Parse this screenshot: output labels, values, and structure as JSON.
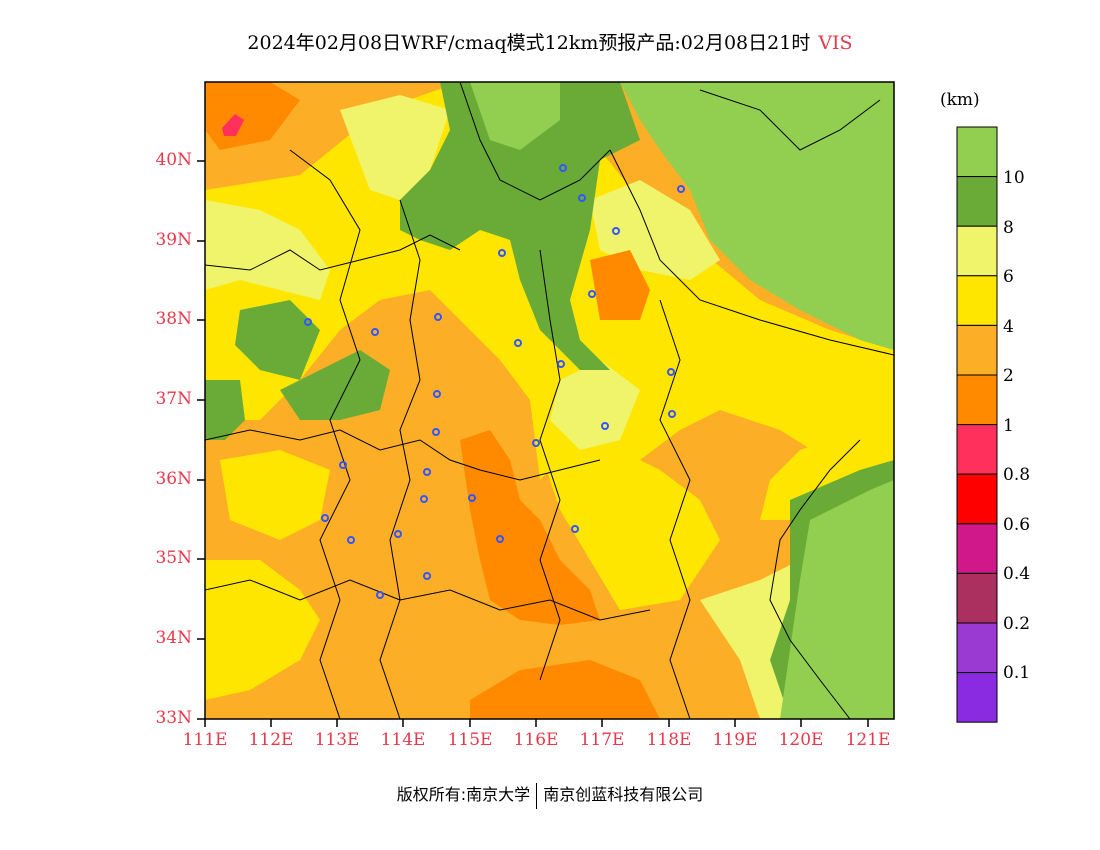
{
  "title": {
    "text": "2024年02月08日WRF/cmaq模式12km预报产品:02月08日21时",
    "variable": "VIS",
    "variable_color": "#e8384a"
  },
  "map": {
    "lat_labels": [
      "40N",
      "39N",
      "38N",
      "37N",
      "36N",
      "35N",
      "34N",
      "33N"
    ],
    "lon_labels": [
      "111E",
      "112E",
      "113E",
      "114E",
      "115E",
      "116E",
      "117E",
      "118E",
      "119E",
      "120E",
      "121E"
    ],
    "axis_label_color": "#e8384a",
    "city_marker_color": "#3355ff"
  },
  "colorbar": {
    "unit": "(km)",
    "colors": [
      "#92cf50",
      "#6aab38",
      "#f0f46a",
      "#ffe600",
      "#fcae26",
      "#ff8a00",
      "#ff305c",
      "#ff0000",
      "#d0188a",
      "#ab3060",
      "#9b3ad2",
      "#8a2be2"
    ],
    "labels": [
      "10",
      "8",
      "6",
      "4",
      "2",
      "1",
      "0.8",
      "0.6",
      "0.4",
      "0.2",
      "0.1"
    ]
  },
  "footer": {
    "left": "版权所有:南京大学",
    "right": "南京创蓝科技有限公司"
  }
}
